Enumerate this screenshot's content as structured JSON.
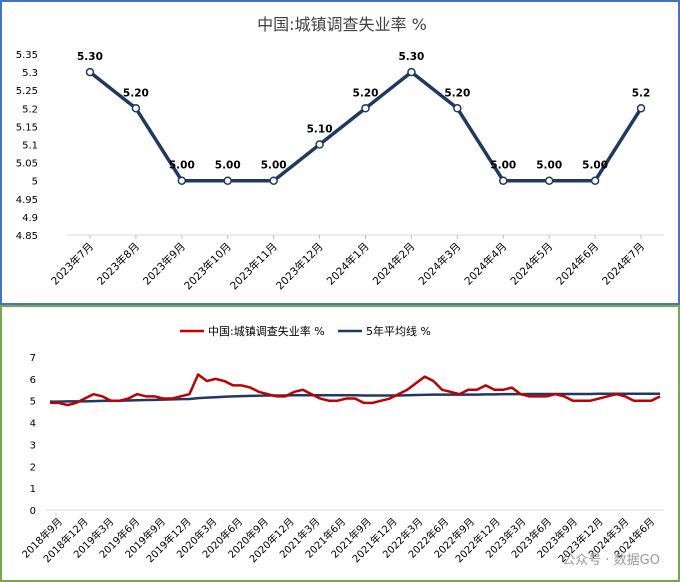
{
  "watermark": "公众号 · 数据GO",
  "colors": {
    "top_line": "#1f3864",
    "red_line": "#c00000",
    "navy_line": "#1f3864",
    "top_border": "#4472c4",
    "bottom_border": "#70ad47",
    "grid": "#d9d9d9"
  },
  "chart_data": [
    {
      "type": "line",
      "title": "中国:城镇调查失业率 %",
      "categories": [
        "2023年7月",
        "2023年8月",
        "2023年9月",
        "2023年10月",
        "2023年11月",
        "2023年12月",
        "2024年1月",
        "2024年2月",
        "2024年3月",
        "2024年4月",
        "2024年5月",
        "2024年6月",
        "2024年7月"
      ],
      "series": [
        {
          "values": [
            5.3,
            5.2,
            5.0,
            5.0,
            5.0,
            5.1,
            5.2,
            5.3,
            5.2,
            5.0,
            5.0,
            5.0,
            5.2
          ]
        }
      ],
      "data_labels": [
        "5.30",
        "5.20",
        "5.00",
        "5.00",
        "5.00",
        "5.10",
        "5.20",
        "5.30",
        "5.20",
        "5.00",
        "5.00",
        "5.00",
        "5.2"
      ],
      "ylim": [
        4.85,
        5.35
      ],
      "yticks": [
        "4.85",
        "4.9",
        "4.95",
        "5",
        "5.05",
        "5.1",
        "5.15",
        "5.2",
        "5.25",
        "5.3",
        "5.35"
      ],
      "grid": false
    },
    {
      "type": "line",
      "legend_position": "top",
      "x_ticks": [
        "2018年9月",
        "2018年12月",
        "2019年3月",
        "2019年6月",
        "2019年9月",
        "2019年12月",
        "2020年3月",
        "2020年6月",
        "2020年9月",
        "2020年12月",
        "2021年3月",
        "2021年6月",
        "2021年9月",
        "2021年12月",
        "2022年3月",
        "2022年6月",
        "2022年9月",
        "2022年12月",
        "2023年3月",
        "2023年6月",
        "2023年9月",
        "2023年12月",
        "2024年3月",
        "2024年6月"
      ],
      "series": [
        {
          "name": "中国:城镇调查失业率 %",
          "color": "#c00000",
          "values": [
            4.9,
            4.9,
            4.8,
            4.9,
            5.1,
            5.3,
            5.2,
            5.0,
            5.0,
            5.1,
            5.3,
            5.2,
            5.2,
            5.1,
            5.1,
            5.2,
            5.3,
            6.2,
            5.9,
            6.0,
            5.9,
            5.7,
            5.7,
            5.6,
            5.4,
            5.3,
            5.2,
            5.2,
            5.4,
            5.5,
            5.3,
            5.1,
            5.0,
            5.0,
            5.1,
            5.1,
            4.9,
            4.9,
            5.0,
            5.1,
            5.3,
            5.5,
            5.8,
            6.1,
            5.9,
            5.5,
            5.4,
            5.3,
            5.5,
            5.5,
            5.7,
            5.5,
            5.5,
            5.6,
            5.3,
            5.2,
            5.2,
            5.2,
            5.3,
            5.2,
            5.0,
            5.0,
            5.0,
            5.1,
            5.2,
            5.3,
            5.2,
            5.0,
            5.0,
            5.0,
            5.2
          ]
        },
        {
          "name": "5年平均线 %",
          "color": "#1f3864",
          "values": [
            4.96,
            4.96,
            4.97,
            4.97,
            4.97,
            4.98,
            4.99,
            5.0,
            5.0,
            5.01,
            5.02,
            5.03,
            5.04,
            5.05,
            5.06,
            5.07,
            5.08,
            5.12,
            5.14,
            5.16,
            5.18,
            5.2,
            5.21,
            5.22,
            5.23,
            5.24,
            5.24,
            5.24,
            5.25,
            5.25,
            5.25,
            5.25,
            5.25,
            5.25,
            5.25,
            5.25,
            5.24,
            5.24,
            5.24,
            5.24,
            5.24,
            5.25,
            5.26,
            5.27,
            5.28,
            5.28,
            5.28,
            5.28,
            5.28,
            5.28,
            5.29,
            5.29,
            5.3,
            5.3,
            5.3,
            5.31,
            5.31,
            5.31,
            5.31,
            5.31,
            5.31,
            5.31,
            5.31,
            5.32,
            5.32,
            5.32,
            5.32,
            5.32,
            5.32,
            5.32,
            5.32
          ]
        }
      ],
      "ylim": [
        0,
        7
      ],
      "yticks": [
        "0",
        "1",
        "2",
        "3",
        "4",
        "5",
        "6",
        "7"
      ],
      "grid": false
    }
  ]
}
